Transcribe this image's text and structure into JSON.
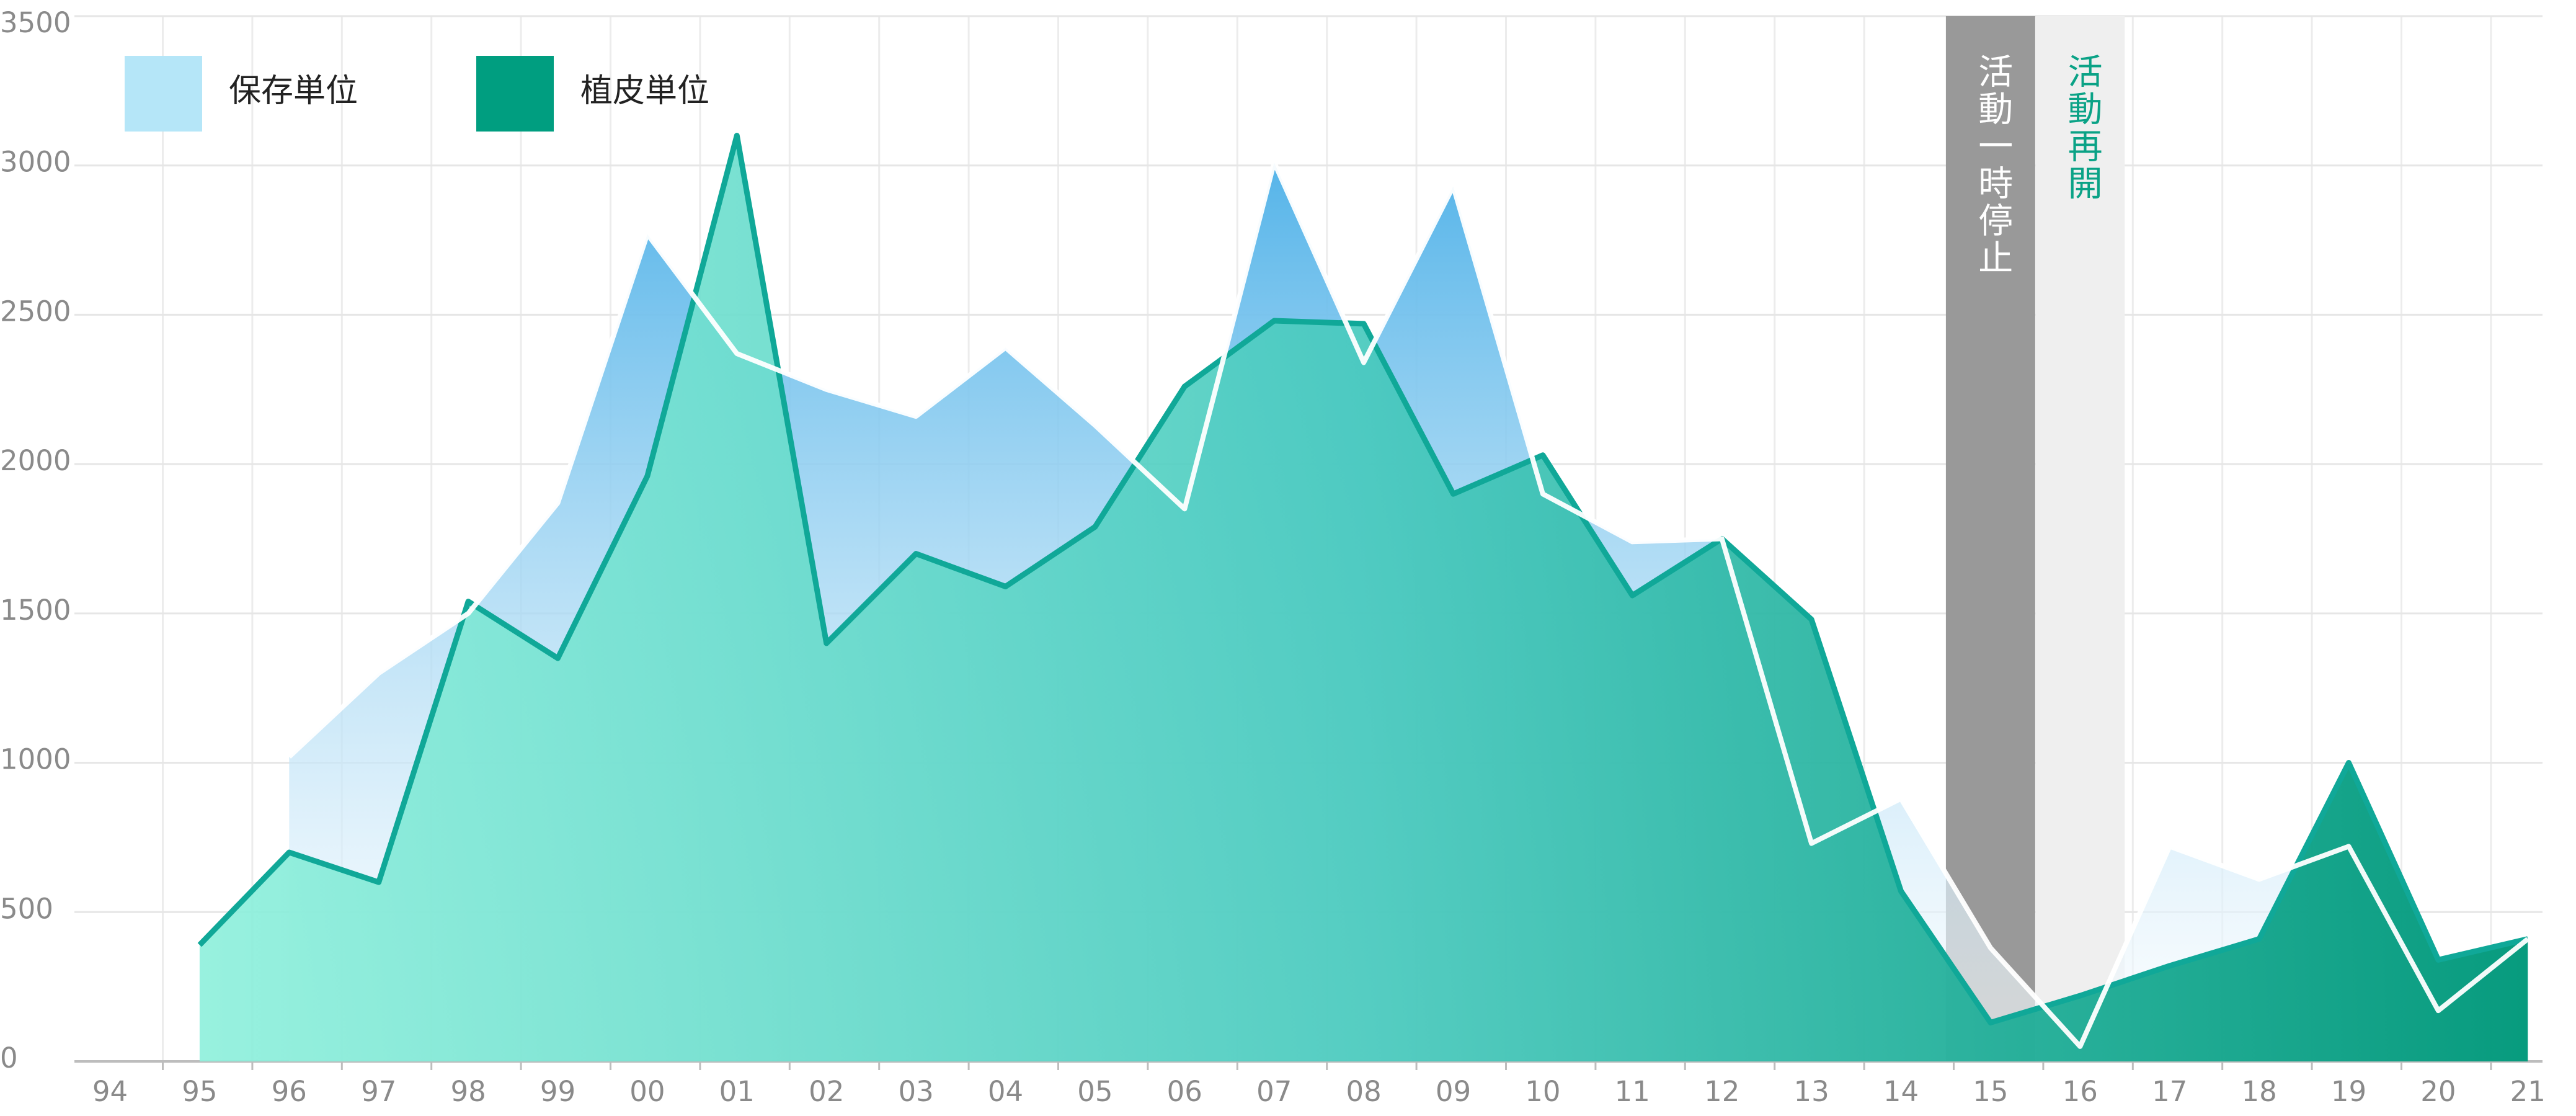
{
  "chart_data": {
    "type": "area",
    "categories": [
      "94",
      "95",
      "96",
      "97",
      "98",
      "99",
      "00",
      "01",
      "02",
      "03",
      "04",
      "05",
      "06",
      "07",
      "08",
      "09",
      "10",
      "11",
      "12",
      "13",
      "14",
      "15",
      "16",
      "17",
      "18",
      "19",
      "20",
      "21"
    ],
    "series": [
      {
        "name": "保存単位",
        "color": "#b5e6f8",
        "values": [
          null,
          null,
          1020,
          1300,
          1500,
          1870,
          2770,
          2370,
          2250,
          2160,
          2390,
          2130,
          1850,
          3010,
          2340,
          2930,
          1900,
          1740,
          1750,
          730,
          880,
          380,
          50,
          720,
          610,
          720,
          170,
          410
        ]
      },
      {
        "name": "植皮単位",
        "color": "#009e80",
        "values": [
          null,
          390,
          700,
          600,
          1540,
          1350,
          1960,
          3100,
          1400,
          1700,
          1590,
          1790,
          2260,
          2480,
          2470,
          1900,
          2030,
          1560,
          1750,
          1480,
          570,
          130,
          220,
          320,
          410,
          1000,
          340,
          410
        ]
      }
    ],
    "ylim": [
      0,
      3500
    ],
    "yticks": [
      0,
      500,
      1000,
      1500,
      2000,
      2500,
      3000,
      3500
    ],
    "grid": true,
    "legend": "top-left",
    "annotations": [
      {
        "text": "活動一時停止",
        "x": "15",
        "band_color": "#999999",
        "text_color": "#ffffff"
      },
      {
        "text": "活動再開",
        "x": "16",
        "band_color": "#efefef",
        "text_color": "#0aa286"
      }
    ]
  }
}
